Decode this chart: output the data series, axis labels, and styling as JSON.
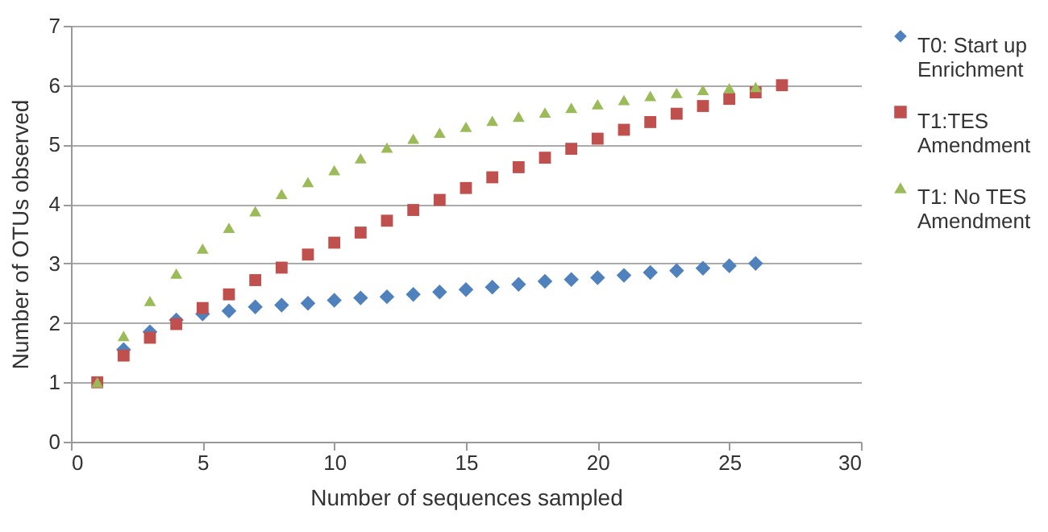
{
  "chart_data": {
    "type": "scatter",
    "xlabel": "Number of sequences sampled",
    "ylabel": "Number of OTUs observed",
    "xlim": [
      0,
      30
    ],
    "xticks": [
      0,
      5,
      10,
      15,
      20,
      25,
      30
    ],
    "ylim": [
      0,
      7
    ],
    "yticks": [
      0,
      1,
      2,
      3,
      4,
      5,
      6,
      7
    ],
    "grid": "y",
    "legend": "right",
    "series": [
      {
        "name": "T0: Start up Enrichment",
        "color": "#4f81bd",
        "marker": "diamond",
        "x": [
          2,
          3,
          4,
          5,
          6,
          7,
          8,
          9,
          10,
          11,
          12,
          13,
          14,
          15,
          16,
          17,
          18,
          19,
          20,
          21,
          22,
          23,
          24,
          25,
          26
        ],
        "values": [
          1.55,
          1.85,
          2.05,
          2.15,
          2.2,
          2.27,
          2.3,
          2.33,
          2.38,
          2.42,
          2.44,
          2.48,
          2.52,
          2.56,
          2.6,
          2.65,
          2.7,
          2.73,
          2.76,
          2.8,
          2.85,
          2.88,
          2.92,
          2.96,
          3.0
        ]
      },
      {
        "name": "T1:TES Amendment",
        "color": "#c0504d",
        "marker": "square",
        "x": [
          1,
          2,
          3,
          4,
          5,
          6,
          7,
          8,
          9,
          10,
          11,
          12,
          13,
          14,
          15,
          16,
          17,
          18,
          19,
          20,
          21,
          22,
          23,
          24,
          25,
          26,
          27
        ],
        "values": [
          1.0,
          1.45,
          1.75,
          1.98,
          2.25,
          2.48,
          2.72,
          2.93,
          3.15,
          3.35,
          3.52,
          3.72,
          3.9,
          4.07,
          4.27,
          4.45,
          4.62,
          4.78,
          4.93,
          5.1,
          5.25,
          5.38,
          5.52,
          5.65,
          5.77,
          5.88,
          6.0
        ]
      },
      {
        "name": "T1: No TES Amendment",
        "color": "#9bbb59",
        "marker": "triangle",
        "x": [
          1,
          2,
          3,
          4,
          5,
          6,
          7,
          8,
          9,
          10,
          11,
          12,
          13,
          14,
          15,
          16,
          17,
          18,
          19,
          20,
          21,
          22,
          23,
          24,
          25,
          26
        ],
        "values": [
          1.0,
          1.78,
          2.37,
          2.83,
          3.25,
          3.6,
          3.88,
          4.17,
          4.37,
          4.57,
          4.77,
          4.95,
          5.1,
          5.2,
          5.3,
          5.4,
          5.47,
          5.54,
          5.62,
          5.68,
          5.75,
          5.82,
          5.87,
          5.92,
          5.95,
          5.97
        ]
      }
    ]
  }
}
